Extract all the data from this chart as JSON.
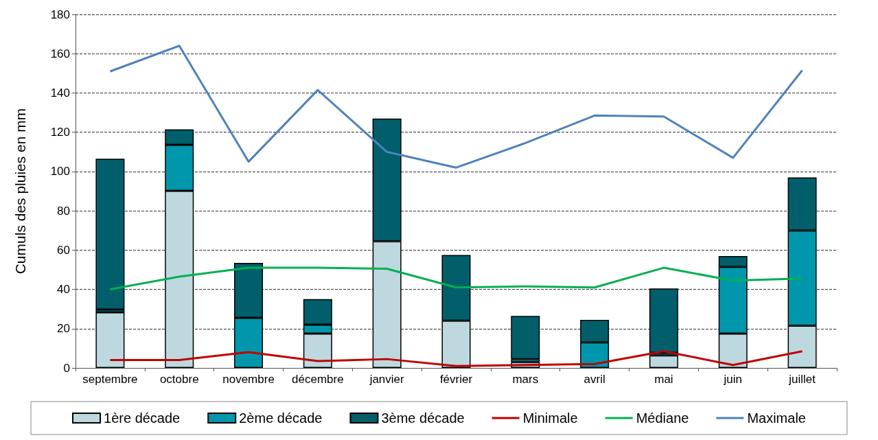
{
  "chart_data": {
    "type": "bar",
    "ylabel": "Cumuls des pluies en mm",
    "categories": [
      "septembre",
      "octobre",
      "novembre",
      "décembre",
      "janvier",
      "février",
      "mars",
      "avril",
      "mai",
      "juin",
      "juillet"
    ],
    "stacked": true,
    "ylim": [
      0,
      180
    ],
    "yticks": [
      0,
      20,
      40,
      60,
      80,
      100,
      120,
      140,
      160,
      180
    ],
    "grid": "y",
    "legend": "bottom",
    "series": [
      {
        "name": "1ère décade",
        "color": "#bdd9df",
        "values": [
          28.3,
          90.2,
          null,
          17.5,
          64.5,
          24,
          3,
          null,
          6.4,
          17.5,
          21.5
        ]
      },
      {
        "name": "2ème décade",
        "color": "#0097ac",
        "values": [
          1.4,
          23.4,
          25.5,
          4.5,
          null,
          null,
          1.5,
          13,
          1.3,
          34,
          48.5
        ]
      },
      {
        "name": "3ème décade",
        "color": "#005f6b",
        "values": [
          76.8,
          7.9,
          28,
          13,
          62.5,
          33.5,
          22,
          11.5,
          32.8,
          5.5,
          27
        ]
      },
      {
        "name": "Minimale",
        "type": "line",
        "color": "#c00000",
        "values": [
          4,
          4,
          8,
          3.5,
          4.5,
          1,
          1.5,
          2,
          8.5,
          1.5,
          8.5
        ]
      },
      {
        "name": "Médiane",
        "type": "line",
        "color": "#00b050",
        "values": [
          40,
          46.5,
          51,
          51,
          50.5,
          41,
          41.5,
          41,
          51,
          44.5,
          45.5
        ]
      },
      {
        "name": "Maximale",
        "type": "line",
        "color": "#4f81bd",
        "values": [
          151,
          164,
          105,
          141.5,
          110,
          102,
          114.5,
          128.5,
          128,
          107,
          151.5
        ]
      }
    ]
  }
}
